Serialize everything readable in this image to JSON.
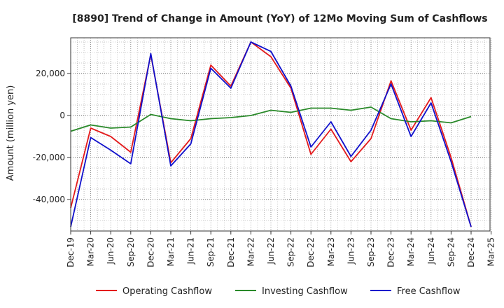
{
  "chart_data": {
    "type": "line",
    "title": "[8890]  Trend of Change in Amount (YoY) of 12Mo Moving Sum of Cashflows",
    "xlabel": "",
    "ylabel": "Amount (million yen)",
    "ylim": [
      -55000,
      37000
    ],
    "yticks": [
      -40000,
      -20000,
      0,
      20000
    ],
    "ytick_labels": [
      "-40,000",
      "-20,000",
      "0",
      "20,000"
    ],
    "categories": [
      "Dec-19",
      "Mar-20",
      "Jun-20",
      "Sep-20",
      "Dec-20",
      "Mar-21",
      "Jun-21",
      "Sep-21",
      "Dec-21",
      "Mar-22",
      "Jun-22",
      "Sep-22",
      "Dec-22",
      "Mar-23",
      "Jun-23",
      "Sep-23",
      "Dec-23",
      "Mar-24",
      "Jun-24",
      "Sep-24",
      "Dec-24",
      "Mar-25"
    ],
    "grid": true,
    "legend_position": "bottom",
    "series": [
      {
        "name": "Operating Cashflow",
        "color": "#e31a1c",
        "values": [
          -44000,
          -6000,
          -10000,
          -17500,
          29000,
          -22500,
          -11000,
          24000,
          14000,
          35000,
          28000,
          13000,
          -18500,
          -6500,
          -22000,
          -11000,
          16500,
          -7000,
          8500,
          -20000,
          -53000,
          null
        ]
      },
      {
        "name": "Investing Cashflow",
        "color": "#2a8a2a",
        "values": [
          -7500,
          -4500,
          -6000,
          -5500,
          500,
          -1500,
          -2500,
          -1500,
          -1000,
          0,
          2500,
          1500,
          3500,
          3500,
          2500,
          4000,
          -1500,
          -3000,
          -2500,
          -3500,
          -500,
          null
        ]
      },
      {
        "name": "Free Cashflow",
        "color": "#1010cc",
        "values": [
          -53000,
          -10500,
          -16500,
          -23000,
          29500,
          -24000,
          -13500,
          22500,
          13000,
          35000,
          30500,
          14000,
          -15000,
          -3000,
          -19500,
          -7000,
          15000,
          -10000,
          6000,
          -22000,
          -53000,
          null
        ]
      }
    ]
  }
}
